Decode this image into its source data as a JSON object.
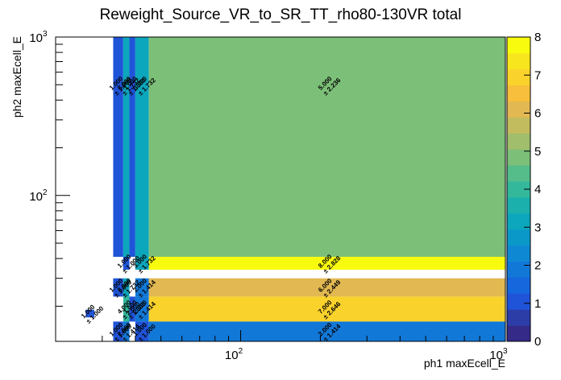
{
  "chart_data": {
    "type": "heatmap",
    "title": "Reweight_Source_VR_to_SR_TT_rho80-130VR total",
    "xlabel": "ph1 maxEcell_E",
    "ylabel": "ph2 maxEcell_E",
    "xscale": "log",
    "yscale": "log",
    "xlim": [
      20,
      1000
    ],
    "ylim": [
      12,
      1000
    ],
    "zlim": [
      0,
      8
    ],
    "x_ticks": [
      {
        "base": "10",
        "exp": "2",
        "value": 100
      },
      {
        "base": "10",
        "exp": "3",
        "value": 1000
      }
    ],
    "y_ticks": [
      {
        "base": "10",
        "exp": "2",
        "value": 100
      },
      {
        "base": "10",
        "exp": "3",
        "value": 1000
      }
    ],
    "palette_ticks": [
      "0",
      "1",
      "2",
      "3",
      "4",
      "5",
      "6",
      "7",
      "8"
    ],
    "colors": {
      "palette": [
        "#352a87",
        "#2d3da8",
        "#1f53d8",
        "#1666dd",
        "#1278d8",
        "#0f88d3",
        "#0a98c9",
        "#0ca6bd",
        "#1cb0ac",
        "#33b89c",
        "#54bd8a",
        "#7cbf78",
        "#a0be6b",
        "#c3bc5f",
        "#e2b852",
        "#f8bf3c",
        "#fad22c",
        "#f7e51e",
        "#f9fb0e"
      ]
    },
    "cells": [
      {
        "x0": 26,
        "x1": 28,
        "y0": 17,
        "y1": 19,
        "value": 1,
        "label": "1.000",
        "err": "± 1.000"
      },
      {
        "x0": 33,
        "x1": 36,
        "y0": 41,
        "y1": 1000,
        "value": 1,
        "label": "1.000",
        "err": "± 1.000"
      },
      {
        "x0": 36,
        "x1": 38,
        "y0": 41,
        "y1": 1000,
        "value": 3,
        "label": "3.000",
        "err": "± 1.732"
      },
      {
        "x0": 38,
        "x1": 40,
        "y0": 41,
        "y1": 1000,
        "value": 1,
        "label": "1.000",
        "err": "± 1.000"
      },
      {
        "x0": 40,
        "x1": 45,
        "y0": 41,
        "y1": 1000,
        "value": 3,
        "label": "3.000",
        "err": "± 1.732"
      },
      {
        "x0": 45,
        "x1": 1000,
        "y0": 41,
        "y1": 1000,
        "value": 5,
        "label": "5.000",
        "err": "± 2.236"
      },
      {
        "x0": 36,
        "x1": 38,
        "y0": 34,
        "y1": 41,
        "value": 1,
        "label": "1.000",
        "err": "± 1.000"
      },
      {
        "x0": 40,
        "x1": 45,
        "y0": 34,
        "y1": 41,
        "value": 3,
        "label": "3.000",
        "err": "± 1.732"
      },
      {
        "x0": 45,
        "x1": 1000,
        "y0": 34,
        "y1": 41,
        "value": 8,
        "label": "8.000",
        "err": "± 2.828"
      },
      {
        "x0": 33,
        "x1": 36,
        "y0": 23,
        "y1": 30,
        "value": 1,
        "label": "1.000",
        "err": "± 1.000"
      },
      {
        "x0": 36,
        "x1": 38,
        "y0": 23,
        "y1": 30,
        "value": 3,
        "label": "3.000",
        "err": "± 1.732"
      },
      {
        "x0": 40,
        "x1": 45,
        "y0": 23,
        "y1": 30,
        "value": 2,
        "label": "2.000",
        "err": "± 1.414"
      },
      {
        "x0": 45,
        "x1": 1000,
        "y0": 23,
        "y1": 30,
        "value": 6,
        "label": "6.000",
        "err": "± 2.449"
      },
      {
        "x0": 36,
        "x1": 38,
        "y0": 16,
        "y1": 23,
        "value": 4,
        "label": "4.000",
        "err": "± 2.000"
      },
      {
        "x0": 38,
        "x1": 40,
        "y0": 16,
        "y1": 23,
        "value": 1,
        "label": "1.000",
        "err": "± 1.000"
      },
      {
        "x0": 40,
        "x1": 45,
        "y0": 16,
        "y1": 23,
        "value": 2,
        "label": "2.000",
        "err": "± 1.414"
      },
      {
        "x0": 45,
        "x1": 1000,
        "y0": 16,
        "y1": 23,
        "value": 7,
        "label": "7.000",
        "err": "± 2.646"
      },
      {
        "x0": 33,
        "x1": 36,
        "y0": 12,
        "y1": 16,
        "value": 1,
        "label": "1.000",
        "err": "± 1.000"
      },
      {
        "x0": 36,
        "x1": 38,
        "y0": 12,
        "y1": 16,
        "value": 2,
        "label": "2.000",
        "err": "± 1.414"
      },
      {
        "x0": 40,
        "x1": 45,
        "y0": 12,
        "y1": 16,
        "value": 1,
        "label": "1.000",
        "err": "± 1.000"
      },
      {
        "x0": 45,
        "x1": 1000,
        "y0": 12,
        "y1": 16,
        "value": 2,
        "label": "2.000",
        "err": "± 1.414"
      }
    ]
  }
}
